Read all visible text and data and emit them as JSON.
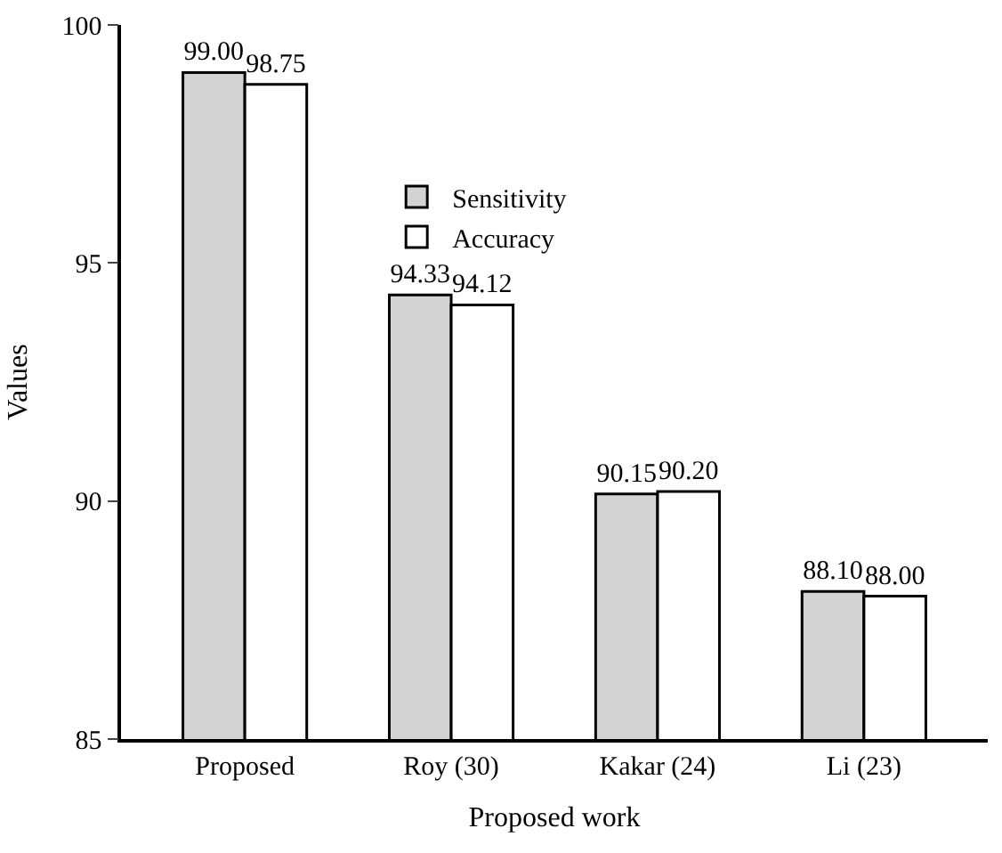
{
  "chart_data": {
    "type": "bar",
    "xlabel": "Proposed work",
    "ylabel": "Values",
    "categories": [
      "Proposed",
      "Roy (30)",
      "Kakar (24)",
      "Li (23)"
    ],
    "series": [
      {
        "name": "Sensitivity",
        "color": "#d3d3d3",
        "values": [
          99.0,
          94.33,
          90.15,
          88.1
        ],
        "value_labels": [
          "99.00",
          "94.33",
          "90.15",
          "88.10"
        ]
      },
      {
        "name": "Accuracy",
        "color": "#ffffff",
        "values": [
          98.75,
          94.12,
          90.2,
          88.0
        ],
        "value_labels": [
          "98.75",
          "94.12",
          "90.20",
          "88.00"
        ]
      }
    ],
    "ylim": [
      85,
      100
    ],
    "yticks": [
      85,
      90,
      95,
      100
    ],
    "legend": "top"
  }
}
